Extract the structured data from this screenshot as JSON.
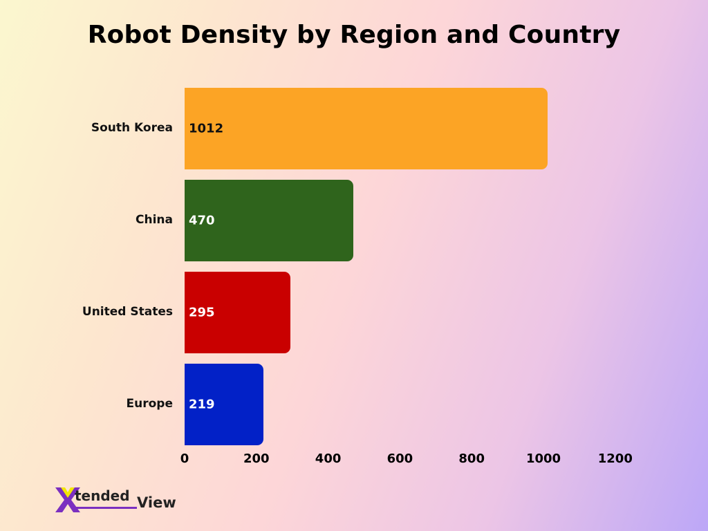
{
  "chart_data": {
    "type": "bar",
    "orientation": "horizontal",
    "title": "Robot Density by Region and Country",
    "categories": [
      "South Korea",
      "China",
      "United States",
      "Europe"
    ],
    "values": [
      1012,
      470,
      295,
      219
    ],
    "colors": [
      "#fca425",
      "#2f641c",
      "#c90000",
      "#0221c7"
    ],
    "value_label_colors": [
      "#111111",
      "#ffffff",
      "#ffffff",
      "#ffffff"
    ],
    "xlabel": "",
    "ylabel": "",
    "xlim": [
      0,
      1200
    ],
    "x_ticks": [
      "0",
      "200",
      "400",
      "600",
      "800",
      "1000",
      "1200"
    ],
    "grid": false,
    "legend": "none"
  },
  "branding": {
    "logo_x": "X",
    "logo_tended": "tended",
    "logo_view": "View"
  }
}
